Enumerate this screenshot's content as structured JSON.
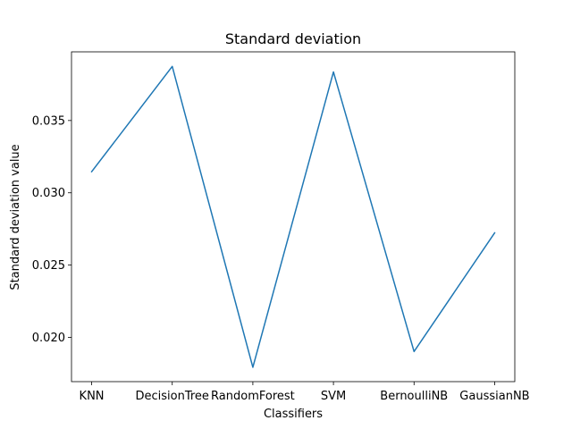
{
  "chart_data": {
    "type": "line",
    "title": "Standard deviation",
    "xlabel": "Classifiers",
    "ylabel": "Standard deviation value",
    "categories": [
      "KNN",
      "DecisionTree",
      "RandomForest",
      "SVM",
      "BernoulliNB",
      "GaussianNB"
    ],
    "series": [
      {
        "values": [
          0.03146,
          0.03874,
          0.01793,
          0.03836,
          0.01902,
          0.02723
        ]
      }
    ],
    "ylim": [
      0.01694,
      0.03975
    ],
    "yticks": [
      0.02,
      0.025,
      0.03,
      0.035
    ],
    "ytick_labels": [
      "0.020",
      "0.025",
      "0.030",
      "0.035"
    ],
    "grid": false,
    "legend": "none",
    "colors": {
      "line": "#1f77b4",
      "axes": "#000000",
      "background": "#ffffff"
    }
  }
}
